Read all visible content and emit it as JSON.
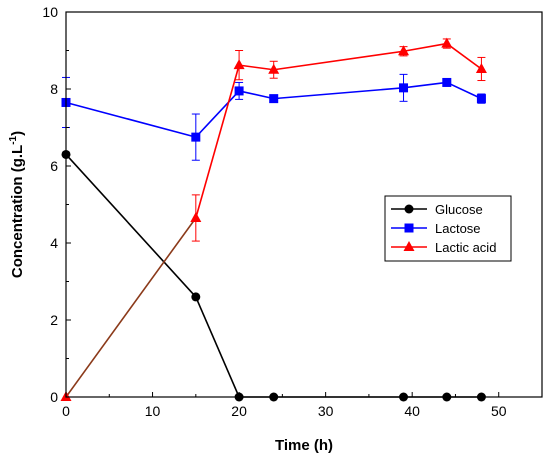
{
  "chart_data": {
    "type": "line",
    "title": "",
    "xlabel": "Time (h)",
    "ylabel_main": "Concentration (g.L",
    "ylabel_sup": "-1",
    "ylabel_tail": ")",
    "xlim": [
      0,
      55
    ],
    "ylim": [
      0,
      10
    ],
    "x_ticks": [
      0,
      10,
      20,
      30,
      40,
      50
    ],
    "y_ticks": [
      0,
      2,
      4,
      6,
      8,
      10
    ],
    "grid": false,
    "legend_position": "right-middle",
    "series": [
      {
        "name": "Glucose",
        "color": "#000000",
        "marker": "circle",
        "points": [
          [
            0,
            6.3
          ],
          [
            15,
            2.6
          ],
          [
            20,
            0.0
          ],
          [
            24,
            0.0
          ],
          [
            39,
            0.0
          ],
          [
            44,
            0.0
          ],
          [
            48,
            0.0
          ]
        ],
        "errors": [
          null,
          null,
          null,
          null,
          null,
          null,
          null
        ]
      },
      {
        "name": "Lactose",
        "color": "#0000ff",
        "marker": "square",
        "points": [
          [
            0,
            7.65
          ],
          [
            15,
            6.75
          ],
          [
            20,
            7.95
          ],
          [
            24,
            7.75
          ],
          [
            39,
            8.03
          ],
          [
            44,
            8.17
          ],
          [
            48,
            7.75
          ]
        ],
        "errors": [
          0.65,
          0.6,
          0.22,
          0.0,
          0.35,
          0.0,
          0.12
        ]
      },
      {
        "name": "Lactic acid",
        "color": "#ff0000",
        "marker": "triangle",
        "points": [
          [
            0,
            0.0
          ],
          [
            15,
            4.65
          ],
          [
            20,
            8.62
          ],
          [
            24,
            8.5
          ],
          [
            39,
            8.98
          ],
          [
            44,
            9.18
          ],
          [
            48,
            8.52
          ]
        ],
        "errors": [
          null,
          0.6,
          0.38,
          0.22,
          0.12,
          0.12,
          0.3
        ]
      }
    ],
    "segment_colors": [
      {
        "series": "Lactic acid",
        "from": 0,
        "to": 1,
        "color": "#8b3a1a"
      }
    ]
  }
}
